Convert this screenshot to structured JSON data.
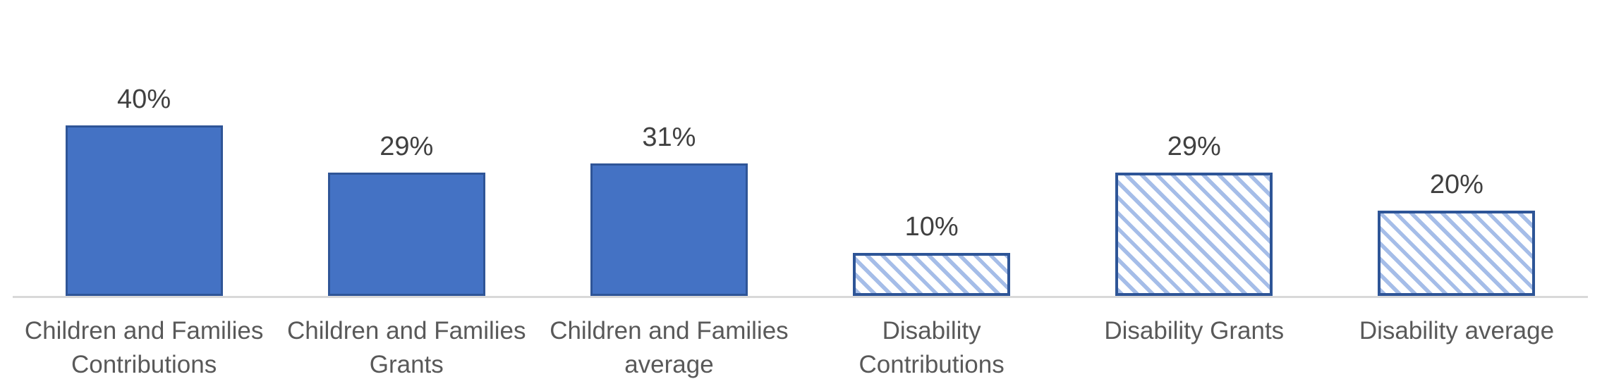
{
  "chart_data": {
    "type": "bar",
    "title": "",
    "xlabel": "",
    "ylabel": "",
    "unit": "%",
    "ylim": [
      0,
      45
    ],
    "grid": false,
    "legend": "none",
    "categories": [
      "Children and Families Contributions",
      "Children and Families Grants",
      "Children and Families average",
      "Disability Contributions",
      "Disability Grants",
      "Disability average"
    ],
    "values": [
      40,
      29,
      31,
      10,
      29,
      20
    ],
    "bars": [
      {
        "label_lines": [
          "Children and Families",
          "Contributions"
        ],
        "value": 40,
        "data_label": "40%",
        "style": "solid"
      },
      {
        "label_lines": [
          "Children and Families",
          "Grants"
        ],
        "value": 29,
        "data_label": "29%",
        "style": "solid"
      },
      {
        "label_lines": [
          "Children and Families",
          "average"
        ],
        "value": 31,
        "data_label": "31%",
        "style": "solid"
      },
      {
        "label_lines": [
          "Disability",
          "Contributions"
        ],
        "value": 10,
        "data_label": "10%",
        "style": "hatched"
      },
      {
        "label_lines": [
          "Disability Grants"
        ],
        "value": 29,
        "data_label": "29%",
        "style": "hatched"
      },
      {
        "label_lines": [
          "Disability average"
        ],
        "value": 20,
        "data_label": "20%",
        "style": "hatched"
      }
    ],
    "colors": {
      "solid_fill": "#4472C4",
      "solid_border": "#2F5597",
      "hatch_stripe": "#A5BDE8",
      "hatch_background": "#FFFFFF",
      "hatch_border": "#2E5597",
      "axis_line": "#D9D9D9",
      "data_label_color": "#404040",
      "category_label_color": "#595959"
    }
  }
}
